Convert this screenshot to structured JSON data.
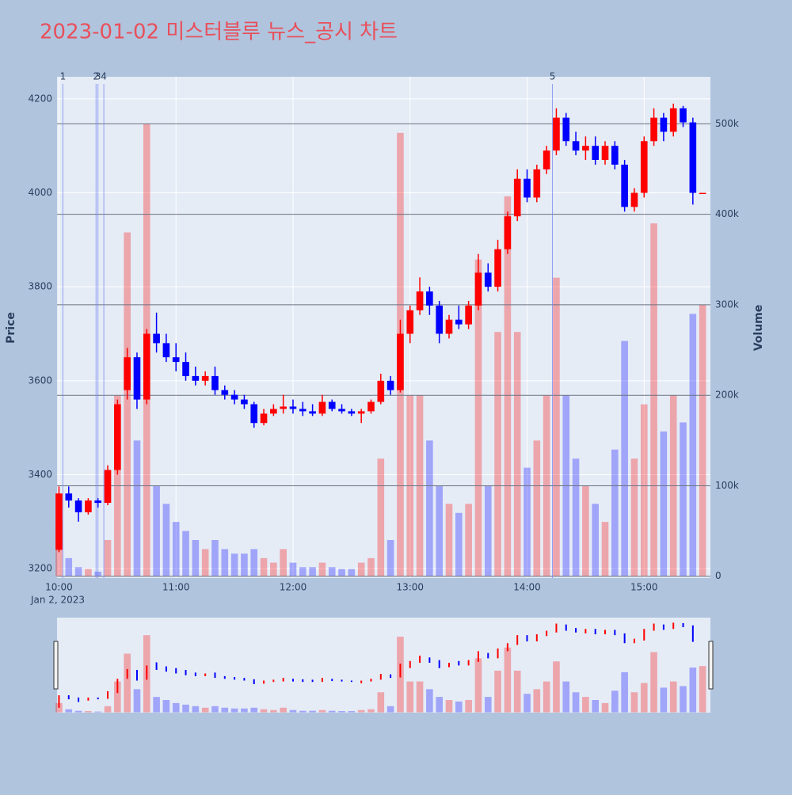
{
  "chart_data": {
    "type": "candlestick",
    "title": "2023-01-02 미스터블루 뉴스_공시 차트",
    "x_sublabel": "Jan 2, 2023",
    "ylabel": "Price",
    "y2label": "Volume",
    "increasing_color": "#ff0000",
    "decreasing_color": "#0000ff",
    "xlim": [
      "09:59",
      "15:34"
    ],
    "xticks": [
      "10:00",
      "11:00",
      "12:00",
      "13:00",
      "14:00",
      "15:00"
    ],
    "ylim": [
      3180,
      4247
    ],
    "yticks": [
      3200,
      3400,
      3600,
      3800,
      4000,
      4200
    ],
    "y2lim": [
      -2000,
      552000
    ],
    "y2ticks": [
      0,
      {
        "value": 100000,
        "label": "100k"
      },
      {
        "value": 200000,
        "label": "200k"
      },
      {
        "value": 300000,
        "label": "300k"
      },
      {
        "value": 400000,
        "label": "400k"
      },
      {
        "value": 500000,
        "label": "500k"
      }
    ],
    "annotations": [
      {
        "x": "10:02",
        "text": "1"
      },
      {
        "x": "10:19",
        "text": "2"
      },
      {
        "x": "10:20",
        "text": "3"
      },
      {
        "x": "10:23",
        "text": "4"
      },
      {
        "x": "14:13",
        "text": "5"
      }
    ],
    "x": [
      "10:00",
      "10:05",
      "10:10",
      "10:15",
      "10:20",
      "10:25",
      "10:30",
      "10:35",
      "10:40",
      "10:45",
      "10:50",
      "10:55",
      "11:00",
      "11:05",
      "11:10",
      "11:15",
      "11:20",
      "11:25",
      "11:30",
      "11:35",
      "11:40",
      "11:45",
      "11:50",
      "11:55",
      "12:00",
      "12:05",
      "12:10",
      "12:15",
      "12:20",
      "12:25",
      "12:30",
      "12:35",
      "12:40",
      "12:45",
      "12:50",
      "12:55",
      "13:00",
      "13:05",
      "13:10",
      "13:15",
      "13:20",
      "13:25",
      "13:30",
      "13:35",
      "13:40",
      "13:45",
      "13:50",
      "13:55",
      "14:00",
      "14:05",
      "14:10",
      "14:15",
      "14:20",
      "14:25",
      "14:30",
      "14:35",
      "14:40",
      "14:45",
      "14:50",
      "14:55",
      "15:00",
      "15:05",
      "15:10",
      "15:15",
      "15:20",
      "15:25",
      "15:30"
    ],
    "open": [
      3240,
      3360,
      3345,
      3320,
      3345,
      3340,
      3410,
      3580,
      3650,
      3560,
      3700,
      3680,
      3650,
      3640,
      3610,
      3600,
      3610,
      3580,
      3570,
      3560,
      3550,
      3510,
      3530,
      3540,
      3545,
      3540,
      3535,
      3530,
      3555,
      3540,
      3535,
      3530,
      3535,
      3555,
      3600,
      3580,
      3700,
      3750,
      3790,
      3760,
      3700,
      3730,
      3720,
      3760,
      3830,
      3800,
      3880,
      3950,
      4030,
      3990,
      4050,
      4090,
      4160,
      4110,
      4090,
      4100,
      4070,
      4100,
      4060,
      3970,
      4000,
      4110,
      4160,
      4130,
      4180,
      4150,
      4000
    ],
    "high": [
      3375,
      3375,
      3350,
      3350,
      3350,
      3420,
      3560,
      3670,
      3660,
      3710,
      3745,
      3700,
      3680,
      3660,
      3630,
      3620,
      3630,
      3590,
      3580,
      3570,
      3555,
      3540,
      3550,
      3570,
      3560,
      3555,
      3550,
      3570,
      3560,
      3550,
      3540,
      3540,
      3560,
      3615,
      3610,
      3730,
      3760,
      3820,
      3800,
      3770,
      3740,
      3760,
      3770,
      3870,
      3850,
      3900,
      3960,
      4050,
      4050,
      4060,
      4100,
      4180,
      4170,
      4130,
      4120,
      4120,
      4110,
      4110,
      4070,
      4010,
      4120,
      4180,
      4170,
      4190,
      4185,
      4160,
      4000
    ],
    "low": [
      3235,
      3330,
      3300,
      3315,
      3330,
      3335,
      3400,
      3560,
      3540,
      3550,
      3660,
      3640,
      3620,
      3600,
      3590,
      3590,
      3570,
      3560,
      3550,
      3540,
      3500,
      3505,
      3525,
      3530,
      3530,
      3525,
      3525,
      3525,
      3535,
      3530,
      3525,
      3510,
      3530,
      3550,
      3570,
      3575,
      3680,
      3740,
      3740,
      3680,
      3690,
      3710,
      3710,
      3750,
      3790,
      3790,
      3870,
      3940,
      3980,
      3980,
      4040,
      4080,
      4100,
      4080,
      4070,
      4060,
      4060,
      4050,
      3960,
      3960,
      3990,
      4100,
      4110,
      4120,
      4140,
      3975,
      4000
    ],
    "close": [
      3360,
      3345,
      3320,
      3345,
      3340,
      3410,
      3550,
      3650,
      3560,
      3700,
      3680,
      3650,
      3640,
      3610,
      3600,
      3610,
      3580,
      3570,
      3560,
      3550,
      3510,
      3530,
      3540,
      3545,
      3540,
      3535,
      3530,
      3555,
      3540,
      3535,
      3530,
      3535,
      3555,
      3600,
      3580,
      3700,
      3750,
      3790,
      3760,
      3700,
      3730,
      3720,
      3760,
      3830,
      3800,
      3880,
      3950,
      4030,
      3990,
      4050,
      4090,
      4160,
      4110,
      4090,
      4100,
      4070,
      4100,
      4060,
      3970,
      4000,
      4110,
      4160,
      4130,
      4180,
      4150,
      4000,
      4000
    ],
    "volume": [
      60000,
      20000,
      10000,
      8000,
      5000,
      40000,
      200000,
      380000,
      150000,
      500000,
      100000,
      80000,
      60000,
      50000,
      40000,
      30000,
      40000,
      30000,
      25000,
      25000,
      30000,
      20000,
      15000,
      30000,
      15000,
      10000,
      10000,
      15000,
      10000,
      8000,
      8000,
      15000,
      20000,
      130000,
      40000,
      490000,
      200000,
      200000,
      150000,
      100000,
      80000,
      70000,
      80000,
      350000,
      100000,
      270000,
      420000,
      270000,
      120000,
      150000,
      200000,
      330000,
      200000,
      130000,
      100000,
      80000,
      60000,
      140000,
      260000,
      130000,
      190000,
      390000,
      160000,
      200000,
      170000,
      290000,
      300000
    ]
  }
}
